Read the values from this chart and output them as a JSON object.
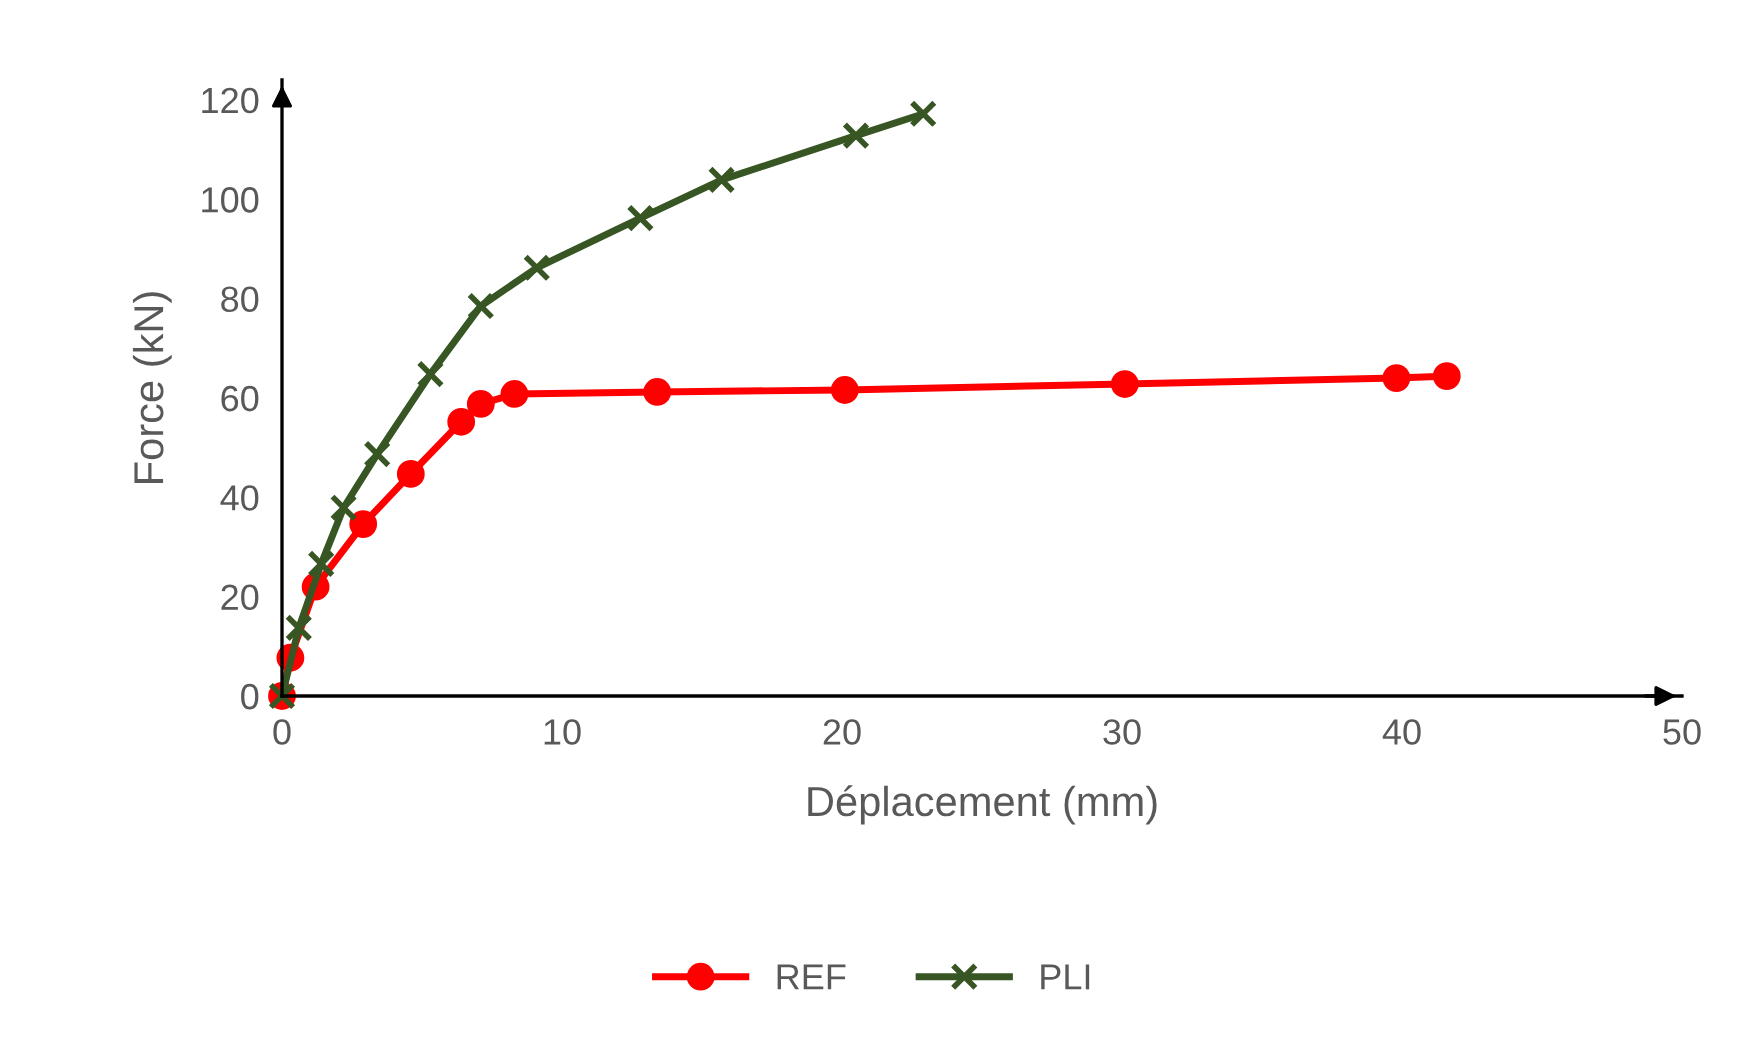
{
  "chart_data": {
    "type": "line",
    "xlabel": "Déplacement (mm)",
    "ylabel": "Force (kN)",
    "xlim": [
      0,
      50
    ],
    "ylim": [
      0,
      124
    ],
    "xticks": [
      0,
      10,
      20,
      30,
      40,
      50
    ],
    "yticks": [
      0,
      20,
      40,
      60,
      80,
      100,
      120
    ],
    "grid": false,
    "legend": "bottom",
    "series": [
      {
        "name": "REF",
        "color": "#ff0000",
        "marker": "circle",
        "x": [
          0,
          0.3,
          1.2,
          2.9,
          4.6,
          6.4,
          7.1,
          8.3,
          13.4,
          20.1,
          30.1,
          39.8,
          41.6
        ],
        "values": [
          0,
          7.7,
          22,
          34.6,
          44.7,
          55.2,
          58.8,
          60.8,
          61.2,
          61.6,
          62.8,
          64,
          64.4
        ]
      },
      {
        "name": "PLI",
        "color": "#375623",
        "marker": "cross",
        "x": [
          0,
          0.6,
          1.4,
          2.2,
          3.4,
          5.3,
          7.1,
          9.1,
          12.8,
          15.7,
          20.5,
          22.9
        ],
        "values": [
          0,
          13.7,
          26.6,
          37.9,
          48.7,
          64.8,
          78.5,
          86.2,
          96.2,
          103.9,
          112.8,
          117.2
        ]
      }
    ]
  }
}
